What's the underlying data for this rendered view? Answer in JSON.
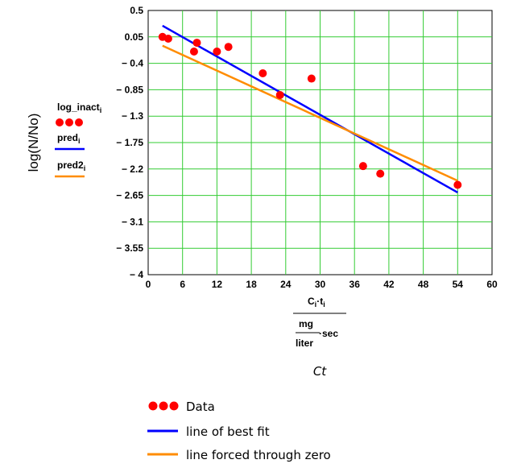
{
  "chart_data": {
    "type": "scatter",
    "ylabel": "log(N/No)",
    "xlim": [
      0,
      60
    ],
    "ylim": [
      -4,
      0.5
    ],
    "xticks": [
      "0",
      "6",
      "12",
      "18",
      "24",
      "30",
      "36",
      "42",
      "48",
      "54",
      "60"
    ],
    "yticks": [
      "0.5",
      "0.05",
      "− 0.4",
      "− 0.85",
      "− 1.3",
      "− 1.75",
      "− 2.2",
      "− 2.65",
      "− 3.1",
      "− 3.55",
      "− 4"
    ],
    "grid": true,
    "series": [
      {
        "name": "Data",
        "kind": "points",
        "color": "#ff0000",
        "x": [
          2.5,
          3.5,
          8.5,
          8,
          12,
          14,
          20,
          23,
          28.5,
          37.5,
          40.5,
          54
        ],
        "y": [
          0.05,
          0.02,
          -0.05,
          -0.2,
          -0.2,
          -0.12,
          -0.57,
          -0.94,
          -0.66,
          -2.15,
          -2.28,
          -2.47
        ]
      },
      {
        "name": "line of best fit",
        "kind": "line",
        "color": "#0000ff",
        "x": [
          2.5,
          54
        ],
        "y": [
          0.24,
          -2.6
        ]
      },
      {
        "name": "line forced through zero",
        "kind": "line",
        "color": "#ff8c00",
        "x": [
          2.5,
          54
        ],
        "y": [
          -0.1,
          -2.4
        ]
      }
    ]
  },
  "inner_legend": {
    "items": [
      {
        "label": "log_inact",
        "sub": "i"
      },
      {
        "label": "pred",
        "sub": "i"
      },
      {
        "label": "pred2",
        "sub": "i"
      }
    ]
  },
  "x_axis_label": {
    "num_c": "C",
    "num_c_sub": "i",
    "num_dot": "·",
    "num_t": "t",
    "num_t_sub": "i",
    "den_num": "mg",
    "den_den": "liter",
    "den_tail": "·sec"
  },
  "caption": "Ct",
  "outer_legend": {
    "items": [
      {
        "label": "Data"
      },
      {
        "label": "line of best fit"
      },
      {
        "label": "line forced through zero"
      }
    ]
  },
  "colors": {
    "grid": "#33cc33",
    "data": "#ff0000",
    "fit": "#0000ff",
    "zero": "#ff8c00"
  }
}
